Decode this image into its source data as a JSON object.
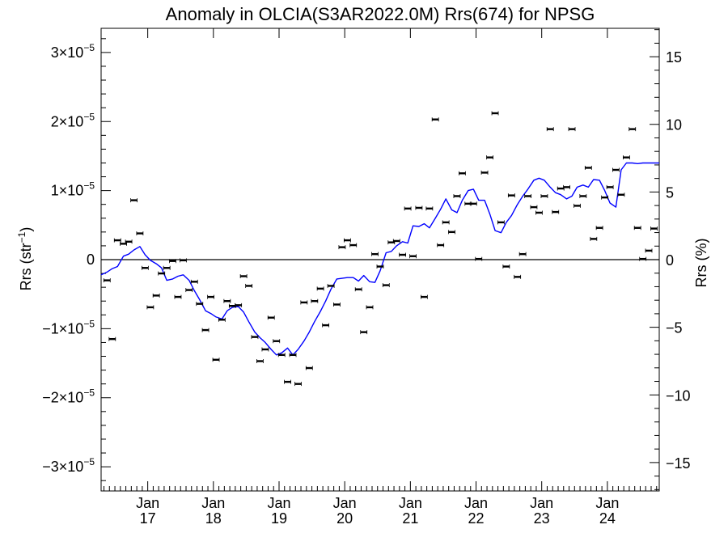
{
  "chart_data": {
    "type": "scatter",
    "title": "Anomaly in OLCIA(S3AR2022.0M) Rrs(674) for NPSG",
    "ylabel": "Rrs (str",
    "ylabel_sup": "−1",
    "ylabel_close": ")",
    "y2label": "Rrs (%)",
    "xlim": [
      2016.29,
      2024.79
    ],
    "ylim": [
      -3.35e-05,
      3.35e-05
    ],
    "y2lim": [
      -17.1,
      17.1
    ],
    "grid": false,
    "y_ticks": [
      {
        "value": 3e-05,
        "mant": "3×10",
        "exp": "−5"
      },
      {
        "value": 2e-05,
        "mant": "2×10",
        "exp": "−5"
      },
      {
        "value": 1e-05,
        "mant": "1×10",
        "exp": "−5"
      },
      {
        "value": 0,
        "mant": "0",
        "exp": ""
      },
      {
        "value": -1e-05,
        "mant": "−1×10",
        "exp": "−5"
      },
      {
        "value": -2e-05,
        "mant": "−2×10",
        "exp": "−5"
      },
      {
        "value": -3e-05,
        "mant": "−3×10",
        "exp": "−5"
      }
    ],
    "y2_ticks": [
      {
        "value": 15,
        "label": "15"
      },
      {
        "value": 10,
        "label": "10"
      },
      {
        "value": 5,
        "label": "5"
      },
      {
        "value": 0,
        "label": "0"
      },
      {
        "value": -5,
        "label": "−5"
      },
      {
        "value": -10,
        "label": "−10"
      },
      {
        "value": -15,
        "label": "−15"
      }
    ],
    "x_ticks": [
      {
        "value": 2017.0,
        "month": "Jan",
        "year": "17"
      },
      {
        "value": 2018.0,
        "month": "Jan",
        "year": "18"
      },
      {
        "value": 2019.0,
        "month": "Jan",
        "year": "19"
      },
      {
        "value": 2020.0,
        "month": "Jan",
        "year": "20"
      },
      {
        "value": 2021.0,
        "month": "Jan",
        "year": "21"
      },
      {
        "value": 2022.0,
        "month": "Jan",
        "year": "22"
      },
      {
        "value": 2023.0,
        "month": "Jan",
        "year": "23"
      },
      {
        "value": 2024.0,
        "month": "Jan",
        "year": "24"
      }
    ],
    "zero_line": 0,
    "colors": {
      "points": "#000000",
      "smooth": "#0000ff",
      "axes": "#000000"
    },
    "series": [
      {
        "kind": "points",
        "x": [
          2016.38,
          2016.46,
          2016.54,
          2016.63,
          2016.71,
          2016.79,
          2016.88,
          2016.96,
          2017.04,
          2017.13,
          2017.21,
          2017.29,
          2017.38,
          2017.46,
          2017.54,
          2017.63,
          2017.71,
          2017.79,
          2017.88,
          2017.96,
          2018.04,
          2018.13,
          2018.21,
          2018.29,
          2018.38,
          2018.46,
          2018.54,
          2018.63,
          2018.71,
          2018.79,
          2018.88,
          2018.96,
          2019.04,
          2019.13,
          2019.21,
          2019.29,
          2019.38,
          2019.46,
          2019.54,
          2019.63,
          2019.71,
          2019.79,
          2019.88,
          2019.96,
          2020.04,
          2020.13,
          2020.21,
          2020.29,
          2020.38,
          2020.46,
          2020.54,
          2020.63,
          2020.71,
          2020.79,
          2020.88,
          2020.96,
          2021.04,
          2021.13,
          2021.21,
          2021.29,
          2021.38,
          2021.46,
          2021.54,
          2021.63,
          2021.71,
          2021.79,
          2021.88,
          2021.96,
          2022.04,
          2022.13,
          2022.21,
          2022.29,
          2022.38,
          2022.46,
          2022.54,
          2022.63,
          2022.71,
          2022.79,
          2022.88,
          2022.96,
          2023.04,
          2023.13,
          2023.21,
          2023.29,
          2023.38,
          2023.46,
          2023.54,
          2023.63,
          2023.71,
          2023.79,
          2023.88,
          2023.96,
          2024.04,
          2024.13,
          2024.21,
          2024.29,
          2024.38,
          2024.46,
          2024.54,
          2024.63,
          2024.71
        ],
        "y": [
          -3e-06,
          -1.15e-05,
          2.8e-06,
          2.3e-06,
          2.6e-06,
          8.6e-06,
          3.8e-06,
          -1.2e-06,
          -6.9e-06,
          -5.2e-06,
          -2e-06,
          -1.2e-06,
          -2e-07,
          -5.4e-06,
          -1e-07,
          -4.4e-06,
          -3.2e-06,
          -6.4e-06,
          -1.02e-05,
          -5.4e-06,
          -1.45e-05,
          -8.7e-06,
          -6e-06,
          -6.7e-06,
          -6.6e-06,
          -2.4e-06,
          -3.8e-06,
          -1.12e-05,
          -1.47e-05,
          -1.3e-05,
          -8.4e-06,
          -1.18e-05,
          -1.38e-05,
          -1.77e-05,
          -1.38e-05,
          -1.8e-05,
          -6.2e-06,
          -1.57e-05,
          -6e-06,
          -4.2e-06,
          -9.5e-06,
          -3.8e-06,
          -6.5e-06,
          1.8e-06,
          2.8e-06,
          2.1e-06,
          -4.3e-06,
          -1.05e-05,
          -6.9e-06,
          8e-07,
          -1e-06,
          -3.7e-06,
          2.5e-06,
          2.7e-06,
          7e-07,
          7.4e-06,
          5e-07,
          7.5e-06,
          -5.4e-06,
          7.4e-06,
          2.03e-05,
          2.1e-06,
          5.4e-06,
          4e-06,
          9.2e-06,
          1.25e-05,
          8.1e-06,
          8.1e-06,
          1e-07,
          1.26e-05,
          1.48e-05,
          2.12e-05,
          5.4e-06,
          -1e-06,
          9.3e-06,
          -2.5e-06,
          8e-07,
          9.2e-06,
          7.6e-06,
          6.8e-06,
          9.2e-06,
          1.89e-05,
          6.9e-06,
          1.03e-05,
          1.05e-05,
          1.89e-05,
          7.8e-06,
          9.2e-06,
          1.33e-05,
          3e-06,
          4.6e-06,
          9e-06,
          1.05e-05,
          1.3e-05,
          9.4e-06,
          1.48e-05,
          1.89e-05,
          4.6e-06,
          1e-07,
          1.3e-06,
          4.5e-06
        ]
      },
      {
        "kind": "smoothed",
        "x": [
          2016.29,
          2016.38,
          2016.46,
          2016.54,
          2016.63,
          2016.71,
          2016.79,
          2016.88,
          2016.96,
          2017.04,
          2017.13,
          2017.21,
          2017.29,
          2017.38,
          2017.46,
          2017.54,
          2017.63,
          2017.71,
          2017.79,
          2017.88,
          2017.96,
          2018.04,
          2018.13,
          2018.21,
          2018.29,
          2018.38,
          2018.46,
          2018.54,
          2018.63,
          2018.71,
          2018.79,
          2018.88,
          2018.96,
          2019.04,
          2019.13,
          2019.21,
          2019.29,
          2019.38,
          2019.46,
          2019.54,
          2019.63,
          2019.71,
          2019.79,
          2019.88,
          2019.96,
          2020.04,
          2020.13,
          2020.21,
          2020.29,
          2020.38,
          2020.46,
          2020.54,
          2020.63,
          2020.71,
          2020.79,
          2020.88,
          2020.96,
          2021.04,
          2021.13,
          2021.21,
          2021.29,
          2021.38,
          2021.46,
          2021.54,
          2021.63,
          2021.71,
          2021.79,
          2021.88,
          2021.96,
          2022.04,
          2022.13,
          2022.21,
          2022.29,
          2022.38,
          2022.46,
          2022.54,
          2022.63,
          2022.71,
          2022.79,
          2022.88,
          2022.96,
          2023.04,
          2023.13,
          2023.21,
          2023.29,
          2023.38,
          2023.46,
          2023.54,
          2023.63,
          2023.71,
          2023.79,
          2023.88,
          2023.96,
          2024.04,
          2024.13,
          2024.21,
          2024.29,
          2024.38,
          2024.46,
          2024.54,
          2024.63,
          2024.71,
          2024.79
        ],
        "y": [
          -2.2e-06,
          -1.8e-06,
          -1.3e-06,
          -1e-06,
          5e-07,
          8e-07,
          1.4e-06,
          1.9e-06,
          7e-07,
          -1e-07,
          -6e-07,
          -1.2e-06,
          -3e-06,
          -2.8e-06,
          -2.4e-06,
          -2.2e-06,
          -3e-06,
          -4.5e-06,
          -5.8e-06,
          -7.4e-06,
          -7.8e-06,
          -8.3e-06,
          -8.6e-06,
          -7.4e-06,
          -6.9e-06,
          -6.8e-06,
          -7.6e-06,
          -9e-06,
          -1.05e-05,
          -1.13e-05,
          -1.2e-05,
          -1.3e-05,
          -1.38e-05,
          -1.35e-05,
          -1.28e-05,
          -1.38e-05,
          -1.3e-05,
          -1.18e-05,
          -1.05e-05,
          -9e-06,
          -7.5e-06,
          -6e-06,
          -4.3e-06,
          -2.8e-06,
          -2.7e-06,
          -2.6e-06,
          -2.6e-06,
          -3.1e-06,
          -2.3e-06,
          -3.2e-06,
          -3.3e-06,
          -1.6e-06,
          1e-06,
          1.2e-06,
          2e-06,
          2.6e-06,
          2.4e-06,
          4.9e-06,
          4.8e-06,
          5.2e-06,
          4.6e-06,
          6e-06,
          7.3e-06,
          8.8e-06,
          7.2e-06,
          6.8e-06,
          8.6e-06,
          1e-05,
          1.02e-05,
          8.6e-06,
          8.6e-06,
          6.6e-06,
          4.2e-06,
          3.9e-06,
          5.4e-06,
          6.4e-06,
          8e-06,
          9.2e-06,
          1.02e-05,
          1.15e-05,
          1.18e-05,
          1.15e-05,
          1.05e-05,
          9.7e-06,
          9.4e-06,
          8.8e-06,
          9.2e-06,
          1.05e-05,
          1.08e-05,
          1.05e-05,
          1.16e-05,
          1.15e-05,
          1e-05,
          8.2e-06,
          7.6e-06,
          1.3e-05,
          1.4e-05,
          1.4e-05,
          1.39e-05,
          1.4e-05,
          1.4e-05,
          1.4e-05,
          1.4e-05
        ]
      }
    ]
  }
}
